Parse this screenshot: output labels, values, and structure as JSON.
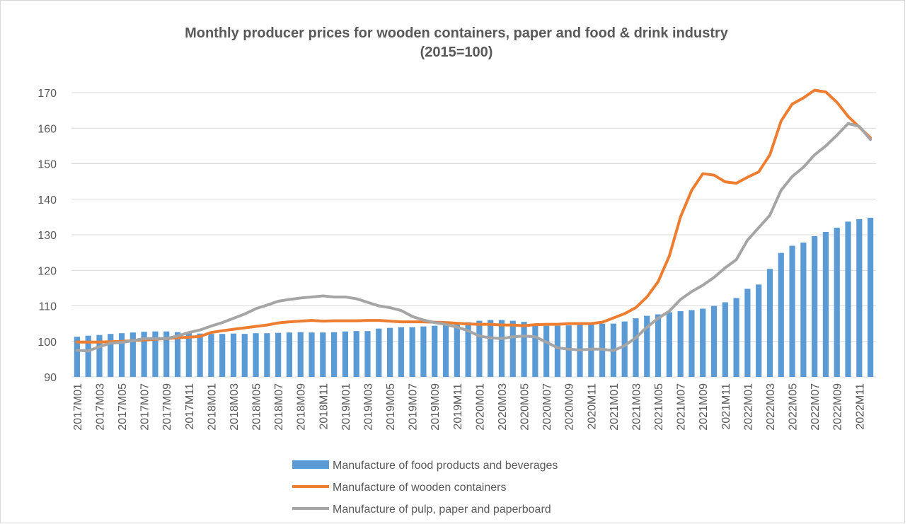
{
  "chart_data": {
    "type": "bar",
    "title": "Monthly producer prices for wooden containers, paper and food & drink industry",
    "subtitle": "(2015=100)",
    "ylim": [
      90,
      175
    ],
    "yticks": [
      90,
      100,
      110,
      120,
      130,
      140,
      150,
      160,
      170
    ],
    "x_tick_labels": [
      "2017M01",
      "2017M03",
      "2017M05",
      "2017M07",
      "2017M09",
      "2017M11",
      "2018M01",
      "2018M03",
      "2018M05",
      "2018M07",
      "2018M09",
      "2018M11",
      "2019M01",
      "2019M03",
      "2019M05",
      "2019M07",
      "2019M09",
      "2019M11",
      "2020M01",
      "2020M03",
      "2020M05",
      "2020M07",
      "2020M09",
      "2020M11",
      "2021M01",
      "2021M03",
      "2021M05",
      "2021M07",
      "2021M09",
      "2021M11",
      "2022M01",
      "2022M03",
      "2022M05",
      "2022M07",
      "2022M09",
      "2022M11"
    ],
    "grid": true,
    "legend_position": "bottom",
    "categories": [
      "2017M01",
      "2017M02",
      "2017M03",
      "2017M04",
      "2017M05",
      "2017M06",
      "2017M07",
      "2017M08",
      "2017M09",
      "2017M10",
      "2017M11",
      "2017M12",
      "2018M01",
      "2018M02",
      "2018M03",
      "2018M04",
      "2018M05",
      "2018M06",
      "2018M07",
      "2018M08",
      "2018M09",
      "2018M10",
      "2018M11",
      "2018M12",
      "2019M01",
      "2019M02",
      "2019M03",
      "2019M04",
      "2019M05",
      "2019M06",
      "2019M07",
      "2019M08",
      "2019M09",
      "2019M10",
      "2019M11",
      "2019M12",
      "2020M01",
      "2020M02",
      "2020M03",
      "2020M04",
      "2020M05",
      "2020M06",
      "2020M07",
      "2020M08",
      "2020M09",
      "2020M10",
      "2020M11",
      "2020M12",
      "2021M01",
      "2021M02",
      "2021M03",
      "2021M04",
      "2021M05",
      "2021M06",
      "2021M07",
      "2021M08",
      "2021M09",
      "2021M10",
      "2021M11",
      "2021M12",
      "2022M01",
      "2022M02",
      "2022M03",
      "2022M04",
      "2022M05",
      "2022M06",
      "2022M07",
      "2022M08",
      "2022M09",
      "2022M10",
      "2022M11",
      "2022M12"
    ],
    "series": [
      {
        "name": "Manufacture of food products and beverages",
        "kind": "bar",
        "color": "#5b9bd5",
        "values": [
          101.3,
          101.6,
          101.8,
          102.1,
          102.3,
          102.5,
          102.7,
          102.8,
          102.8,
          102.6,
          102.4,
          102.2,
          102.1,
          102.1,
          102.2,
          102.1,
          102.3,
          102.3,
          102.4,
          102.5,
          102.6,
          102.5,
          102.5,
          102.6,
          102.8,
          102.9,
          102.9,
          103.6,
          103.8,
          104.0,
          104.0,
          104.2,
          104.4,
          104.6,
          105.0,
          105.4,
          105.8,
          106.0,
          106.0,
          105.8,
          105.5,
          104.6,
          104.4,
          104.4,
          104.5,
          104.6,
          104.8,
          105.0,
          105.0,
          105.6,
          106.5,
          107.2,
          107.6,
          108.2,
          108.5,
          108.8,
          109.2,
          110.0,
          111.0,
          112.2,
          114.8,
          116.0,
          120.4,
          124.9,
          126.9,
          127.8,
          129.6,
          130.8,
          132.0,
          133.7,
          134.4,
          134.8
        ]
      },
      {
        "name": "Manufacture of wooden containers",
        "kind": "line",
        "color": "#ed7d31",
        "values": [
          99.8,
          99.8,
          99.8,
          99.9,
          100.0,
          100.2,
          100.4,
          100.6,
          100.8,
          101.0,
          101.2,
          101.4,
          102.5,
          103.0,
          103.4,
          103.8,
          104.2,
          104.6,
          105.2,
          105.5,
          105.7,
          105.9,
          105.7,
          105.8,
          105.8,
          105.8,
          105.9,
          105.9,
          105.7,
          105.5,
          105.5,
          105.5,
          105.4,
          105.3,
          105.1,
          104.9,
          104.8,
          104.8,
          104.6,
          104.6,
          104.4,
          104.7,
          104.8,
          104.8,
          105.0,
          105.0,
          105.0,
          105.4,
          106.6,
          107.8,
          109.5,
          112.5,
          116.8,
          124.0,
          135.0,
          142.5,
          147.2,
          146.8,
          144.9,
          144.5,
          146.2,
          147.7,
          152.5,
          162.0,
          166.8,
          168.5,
          170.7,
          170.2,
          167.3,
          163.3,
          160.3,
          157.3
        ]
      },
      {
        "name": "Manufacture of pulp, paper and paperboard",
        "kind": "line",
        "color": "#a5a5a5",
        "values": [
          97.5,
          97.3,
          98.5,
          99.5,
          99.7,
          100.2,
          100.8,
          100.8,
          100.8,
          101.5,
          102.5,
          103.2,
          104.3,
          105.3,
          106.5,
          107.7,
          109.2,
          110.2,
          111.3,
          111.8,
          112.2,
          112.5,
          112.8,
          112.5,
          112.5,
          112.0,
          111.0,
          110.0,
          109.5,
          108.7,
          107.0,
          106.0,
          105.3,
          104.8,
          104.0,
          103.0,
          101.5,
          101.0,
          100.8,
          101.3,
          101.5,
          101.3,
          99.8,
          98.2,
          97.8,
          97.6,
          97.8,
          97.8,
          97.4,
          98.8,
          101.0,
          104.0,
          106.5,
          108.5,
          111.8,
          114.0,
          115.8,
          118.0,
          120.7,
          123.0,
          128.5,
          132.0,
          135.5,
          142.5,
          146.4,
          149.0,
          152.5,
          155.0,
          158.0,
          161.3,
          160.5,
          156.8
        ]
      }
    ]
  }
}
